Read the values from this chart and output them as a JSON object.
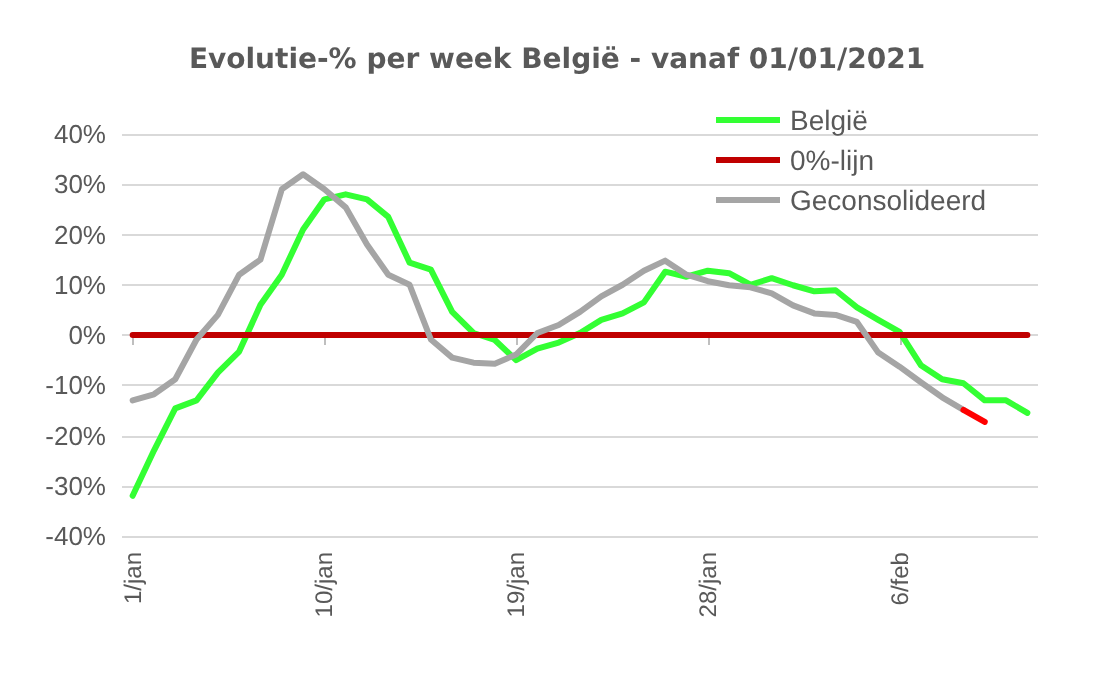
{
  "chart_data": {
    "type": "line",
    "title": "Evolutie-% per week België - vanaf 01/01/2021",
    "categories": [
      "1/jan",
      null,
      null,
      null,
      null,
      null,
      null,
      null,
      null,
      "10/jan",
      null,
      null,
      null,
      null,
      null,
      null,
      null,
      null,
      "19/jan",
      null,
      null,
      null,
      null,
      null,
      null,
      null,
      null,
      "28/jan",
      null,
      null,
      null,
      null,
      null,
      null,
      null,
      null,
      "6/feb",
      null,
      null,
      null,
      null,
      null,
      null
    ],
    "series": [
      {
        "name": "België",
        "color": "#33ff33",
        "values": [
          -32,
          -23,
          -14.6,
          -13,
          -7.5,
          -3.3,
          6,
          12,
          21,
          27,
          28,
          27,
          23.5,
          14.4,
          13,
          4.6,
          0.4,
          -1,
          -5,
          -2.7,
          -1.5,
          0.4,
          3,
          4.3,
          6.5,
          12.6,
          11.6,
          12.8,
          12.3,
          10,
          11.3,
          9.9,
          8.7,
          8.9,
          5.5,
          3,
          0.6,
          -6,
          -8.8,
          -9.6,
          -13,
          -13,
          -15.5
        ]
      },
      {
        "name": "0%-lijn",
        "color": "#c00000",
        "values": [
          0,
          0,
          0,
          0,
          0,
          0,
          0,
          0,
          0,
          0,
          0,
          0,
          0,
          0,
          0,
          0,
          0,
          0,
          0,
          0,
          0,
          0,
          0,
          0,
          0,
          0,
          0,
          0,
          0,
          0,
          0,
          0,
          0,
          0,
          0,
          0,
          0,
          0,
          0,
          0,
          0,
          0,
          0
        ]
      },
      {
        "name": "Geconsolideerd",
        "color": "#a5a5a5",
        "values": [
          -13,
          -11.8,
          -8.8,
          -0.9,
          4,
          12,
          15,
          29,
          32,
          29,
          25.4,
          18,
          12,
          10,
          -0.9,
          -4.5,
          -5.5,
          -5.7,
          -3.9,
          0.4,
          2,
          4.6,
          7.7,
          10,
          12.8,
          14.8,
          12,
          10.7,
          9.9,
          9.5,
          8.3,
          5.9,
          4.3,
          4,
          2.6,
          -3.5,
          -6.3,
          -9.4,
          -12.4,
          -14.9,
          null,
          null,
          null
        ]
      },
      {
        "color": "#ff0000",
        "values": [
          null,
          null,
          null,
          null,
          null,
          null,
          null,
          null,
          null,
          null,
          null,
          null,
          null,
          null,
          null,
          null,
          null,
          null,
          null,
          null,
          null,
          null,
          null,
          null,
          null,
          null,
          null,
          null,
          null,
          null,
          null,
          null,
          null,
          null,
          null,
          null,
          null,
          null,
          null,
          -14.9,
          -17.3,
          null,
          null
        ]
      }
    ],
    "ylim": [
      -40,
      40
    ],
    "yticks": [
      {
        "value": -40,
        "label": "-40%"
      },
      {
        "value": -30,
        "label": "-30%"
      },
      {
        "value": -20,
        "label": "-20%"
      },
      {
        "value": -10,
        "label": "-10%"
      },
      {
        "value": 0,
        "label": "0%"
      },
      {
        "value": 10,
        "label": "10%"
      },
      {
        "value": 20,
        "label": "20%"
      },
      {
        "value": 30,
        "label": "30%"
      },
      {
        "value": 40,
        "label": "40%"
      }
    ],
    "grid": "y",
    "legend": "top right",
    "marker": "none",
    "line_style": "solid"
  }
}
